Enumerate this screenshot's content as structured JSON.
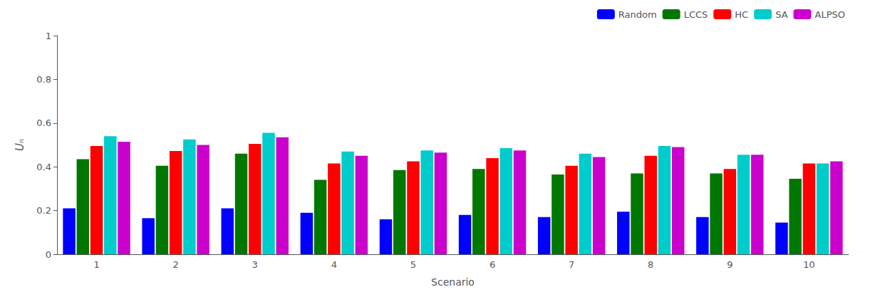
{
  "chart_data": {
    "type": "bar",
    "categories": [
      "1",
      "2",
      "3",
      "4",
      "5",
      "6",
      "7",
      "8",
      "9",
      "10"
    ],
    "series": [
      {
        "name": "Random",
        "color": "#0000FF",
        "values": [
          0.21,
          0.165,
          0.21,
          0.19,
          0.16,
          0.18,
          0.17,
          0.195,
          0.17,
          0.145
        ]
      },
      {
        "name": "LCCS",
        "color": "#007700",
        "values": [
          0.435,
          0.405,
          0.46,
          0.34,
          0.385,
          0.39,
          0.365,
          0.37,
          0.37,
          0.345
        ]
      },
      {
        "name": "HC",
        "color": "#FF0000",
        "values": [
          0.495,
          0.472,
          0.505,
          0.415,
          0.425,
          0.44,
          0.405,
          0.45,
          0.39,
          0.415
        ]
      },
      {
        "name": "SA",
        "color": "#00CCCC",
        "values": [
          0.54,
          0.525,
          0.555,
          0.47,
          0.475,
          0.485,
          0.46,
          0.495,
          0.455,
          0.415
        ]
      },
      {
        "name": "ALPSO",
        "color": "#CC00CC",
        "values": [
          0.515,
          0.5,
          0.535,
          0.45,
          0.465,
          0.475,
          0.445,
          0.49,
          0.455,
          0.425
        ]
      }
    ],
    "xlabel": "Scenario",
    "ylabel": "Uₙ",
    "ylim": [
      0,
      1
    ],
    "yticks": [
      0,
      0.2,
      0.4,
      0.6,
      0.8,
      1
    ],
    "grid": false,
    "legend": "upper right"
  }
}
